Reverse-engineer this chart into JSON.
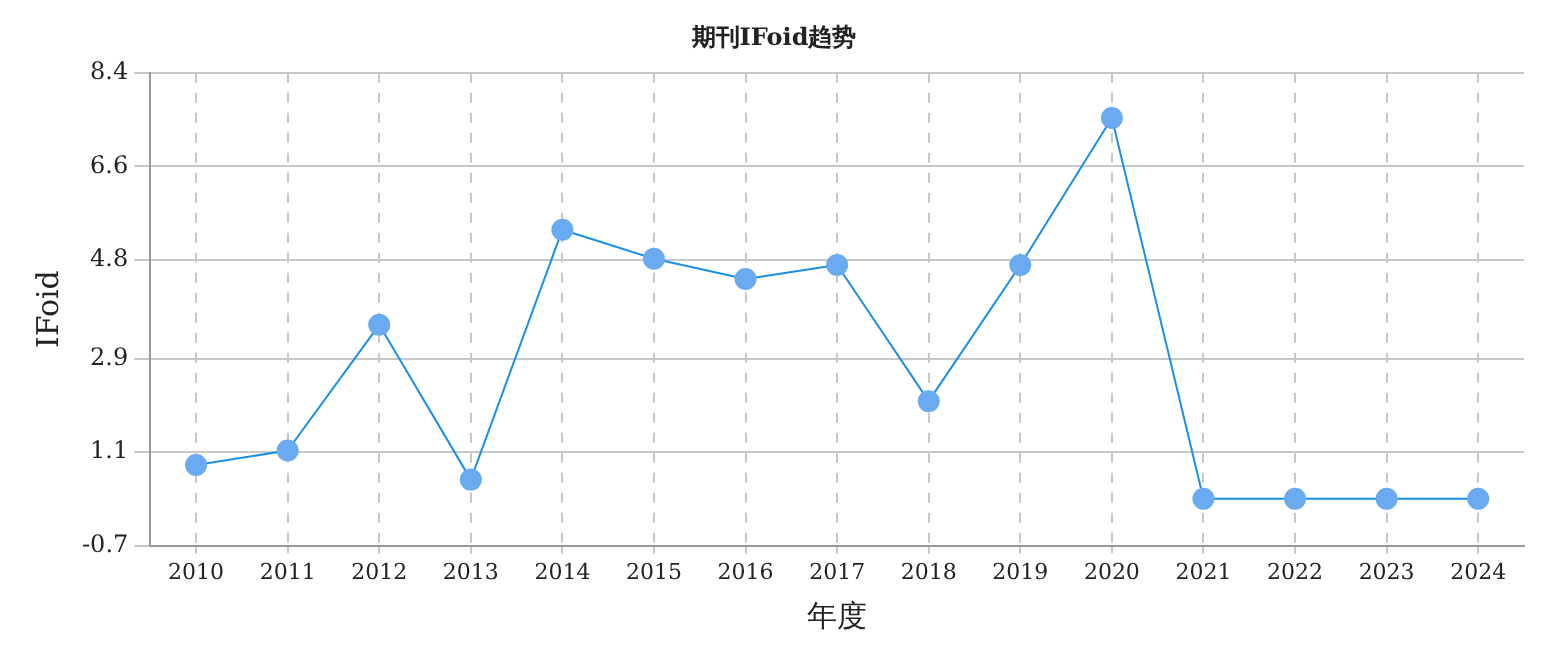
{
  "chart_data": {
    "type": "line",
    "title": "期刊IFoid趋势",
    "xlabel": "年度",
    "ylabel": "IFoid",
    "categories": [
      "2010",
      "2011",
      "2012",
      "2013",
      "2014",
      "2015",
      "2016",
      "2017",
      "2018",
      "2019",
      "2020",
      "2021",
      "2022",
      "2023",
      "2024"
    ],
    "series": [
      {
        "color": "#1a8fe6",
        "values": [
          0.85,
          1.13,
          3.55,
          0.57,
          5.38,
          4.82,
          4.43,
          4.7,
          2.08,
          4.7,
          7.53,
          0.2,
          0.2,
          0.2,
          0.2
        ]
      }
    ],
    "ylim": [
      -0.7,
      8.4
    ],
    "yticks": [
      -0.7,
      1.1,
      2.9,
      4.8,
      6.6,
      8.4
    ],
    "grid": true,
    "marker": "circle",
    "line_style": "solid",
    "legend": false
  }
}
